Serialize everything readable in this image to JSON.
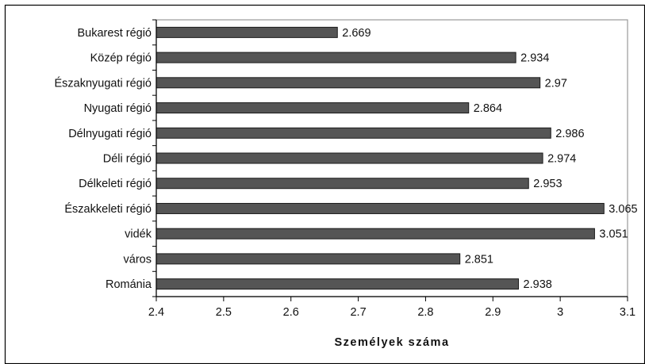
{
  "chart_data": {
    "type": "bar",
    "orientation": "horizontal",
    "title": "",
    "xlabel": "Személyek száma",
    "ylabel": "",
    "xlim": [
      2.4,
      3.1
    ],
    "xticks": [
      "2.4",
      "2.5",
      "2.6",
      "2.7",
      "2.8",
      "2.9",
      "3",
      "3.1"
    ],
    "grid": false,
    "legend": "none",
    "categories": [
      "Bukarest régió",
      "Közép régió",
      "Északnyugati régió",
      "Nyugati régió",
      "Délnyugati régió",
      "Déli régió",
      "Délkeleti régió",
      "Északkeleti régió",
      "vidék",
      "város",
      "Románia"
    ],
    "values": [
      2.669,
      2.934,
      2.97,
      2.864,
      2.986,
      2.974,
      2.953,
      3.065,
      3.051,
      2.851,
      2.938
    ],
    "value_labels": [
      "2.669",
      "2.934",
      "2.97",
      "2.864",
      "2.986",
      "2.974",
      "2.953",
      "3.065",
      "3.051",
      "2.851",
      "2.938"
    ],
    "colors": {
      "bar_fill": "#555555",
      "bar_stroke": "#1a1a1a",
      "axis": "#000000",
      "plot_border": "#999999",
      "outer_border": "#000000"
    }
  }
}
